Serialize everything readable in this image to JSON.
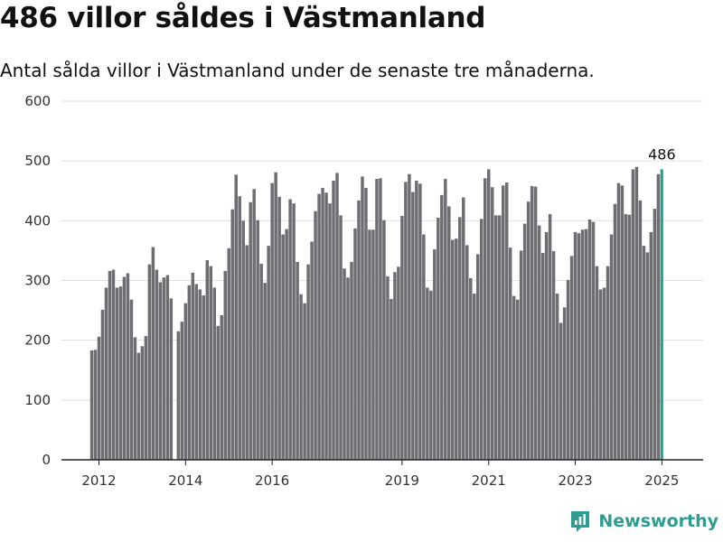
{
  "header": {
    "title": "486 villor såldes i Västmanland",
    "subtitle": "Antal sålda villor i Västmanland under de senaste tre månaderna."
  },
  "brand": {
    "name": "Newsworthy",
    "icon": "newsworthy-logo-icon"
  },
  "colors": {
    "bar": "#6e6d72",
    "highlight": "#2a9d8f",
    "grid": "#e0e0e0",
    "axis": "#222222"
  },
  "chart_data": {
    "type": "bar",
    "title": "486 villor såldes i Västmanland",
    "subtitle": "Antal sålda villor i Västmanland under de senaste tre månaderna.",
    "xlabel": "",
    "ylabel": "",
    "ylim": [
      0,
      600
    ],
    "yticks": [
      0,
      100,
      200,
      300,
      400,
      500,
      600
    ],
    "xticks": [
      {
        "label": "2012",
        "month_index": 2
      },
      {
        "label": "2014",
        "month_index": 26
      },
      {
        "label": "2016",
        "month_index": 50
      },
      {
        "label": "2019",
        "month_index": 86
      },
      {
        "label": "2021",
        "month_index": 110
      },
      {
        "label": "2023",
        "month_index": 134
      },
      {
        "label": "2025",
        "month_index": 158
      }
    ],
    "start": "2012-01",
    "end": "2025-05",
    "last_label": "486",
    "grid": true,
    "values": [
      183,
      184,
      206,
      251,
      288,
      316,
      318,
      288,
      290,
      306,
      312,
      268,
      205,
      179,
      190,
      207,
      327,
      356,
      318,
      297,
      305,
      309,
      270,
      null,
      215,
      231,
      262,
      292,
      313,
      294,
      285,
      275,
      334,
      324,
      288,
      224,
      242,
      316,
      354,
      419,
      477,
      441,
      400,
      359,
      431,
      453,
      401,
      328,
      296,
      358,
      463,
      481,
      440,
      377,
      386,
      436,
      429,
      331,
      277,
      262,
      327,
      365,
      416,
      445,
      455,
      447,
      429,
      467,
      480,
      409,
      320,
      305,
      331,
      387,
      434,
      474,
      455,
      385,
      385,
      470,
      471,
      401,
      307,
      269,
      314,
      323,
      408,
      465,
      478,
      448,
      467,
      462,
      377,
      288,
      283,
      352,
      405,
      443,
      470,
      424,
      368,
      370,
      406,
      439,
      359,
      304,
      278,
      344,
      403,
      471,
      486,
      456,
      409,
      409,
      459,
      464,
      355,
      274,
      268,
      350,
      395,
      432,
      458,
      457,
      392,
      346,
      381,
      411,
      349,
      278,
      229,
      255,
      301,
      341,
      381,
      379,
      385,
      386,
      402,
      398,
      324,
      285,
      288,
      324,
      377,
      428,
      463,
      459,
      411,
      410,
      486,
      490,
      434,
      358,
      347,
      381,
      420,
      478,
      486
    ]
  }
}
